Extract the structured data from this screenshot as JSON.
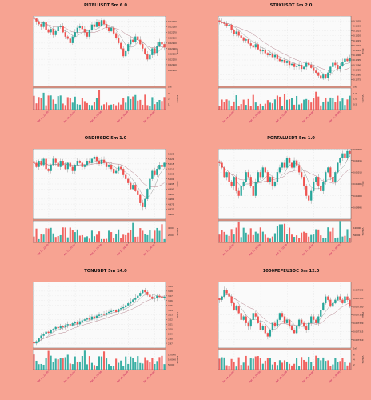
{
  "chart_data": [
    {
      "type": "candlestick",
      "title": "PIXELUSDT 5m 6.0",
      "ylabel": "Price",
      "volume_label": "Volume",
      "ylim": [
        0.0217,
        0.023
      ],
      "price_ticks": [
        "0.02200",
        "0.02210",
        "0.02220",
        "0.02230",
        "0.02240",
        "0.02250",
        "0.02260",
        "0.02270",
        "0.02280",
        "0.02290"
      ],
      "x_ticks": [
        "Apr 14, 22:00",
        "Apr 15, 00:00",
        "Apr 15, 02:00",
        "Apr 15, 04:00",
        "Apr 15, 06:00"
      ],
      "volume_ticks": [
        "1",
        "2",
        "3"
      ],
      "volume_exponent": "1e6",
      "close": [
        0.02295,
        0.0229,
        0.02285,
        0.0228,
        0.02288,
        0.02275,
        0.0227,
        0.02276,
        0.02265,
        0.02272,
        0.0228,
        0.02282,
        0.0227,
        0.02262,
        0.02258,
        0.0225,
        0.02262,
        0.0227,
        0.02278,
        0.02282,
        0.02276,
        0.0227,
        0.02262,
        0.02274,
        0.02284,
        0.0228,
        0.02288,
        0.02282,
        0.02292,
        0.02285,
        0.02278,
        0.02272,
        0.02278,
        0.02268,
        0.0226,
        0.0225,
        0.0224,
        0.02226,
        0.02235,
        0.02248,
        0.02256,
        0.02252,
        0.02262,
        0.02256,
        0.02248,
        0.0224,
        0.0223,
        0.0222,
        0.02228,
        0.0224,
        0.02232,
        0.02245,
        0.02252,
        0.02248,
        0.02242
      ]
    },
    {
      "type": "candlestick",
      "title": "STRKUSDT 5m 2.0",
      "ylabel": "Price",
      "volume_label": "Volume",
      "ylim": [
        0.1268,
        0.134
      ],
      "price_ticks": [
        "0.1275",
        "0.1280",
        "0.1285",
        "0.1290",
        "0.1295",
        "0.1300",
        "0.1305",
        "0.1310",
        "0.1315",
        "0.1320",
        "0.1325",
        "0.1330",
        "0.1335"
      ],
      "x_ticks": [
        "Apr 14, 22:00",
        "Apr 15, 00:00",
        "Apr 15, 02:00",
        "Apr 15, 04:00",
        "Apr 15, 06:00"
      ],
      "volume_ticks": [
        "0.5",
        "1.0",
        "1.5"
      ],
      "volume_exponent": "1e5",
      "close": [
        0.1334,
        0.1333,
        0.1332,
        0.133,
        0.1331,
        0.1326,
        0.1322,
        0.1324,
        0.132,
        0.1318,
        0.1315,
        0.1316,
        0.1312,
        0.131,
        0.1308,
        0.1311,
        0.1306,
        0.1304,
        0.1305,
        0.1302,
        0.13,
        0.1301,
        0.1298,
        0.13,
        0.1296,
        0.1294,
        0.1295,
        0.1292,
        0.1294,
        0.129,
        0.1291,
        0.1288,
        0.1289,
        0.129,
        0.1286,
        0.1288,
        0.1292,
        0.129,
        0.1287,
        0.1284,
        0.1282,
        0.1279,
        0.1276,
        0.128,
        0.1277,
        0.1282,
        0.1288,
        0.1292,
        0.129,
        0.1286,
        0.1289,
        0.1293,
        0.1296,
        0.1294,
        0.1297
      ]
    },
    {
      "type": "candlestick",
      "title": "ORDIUSDC 5m 1.0",
      "ylabel": "Price",
      "volume_label": "Volume",
      "ylim": [
        4.96,
        5.03
      ],
      "price_ticks": [
        "4.965",
        "4.970",
        "4.975",
        "4.980",
        "4.985",
        "4.990",
        "4.995",
        "5.000",
        "5.005",
        "5.010",
        "5.015",
        "5.020",
        "5.025"
      ],
      "x_ticks": [
        "Apr 14, 22:00",
        "Apr 15, 00:00",
        "Apr 15, 02:00",
        "Apr 15, 04:00",
        "Apr 15, 06:00"
      ],
      "volume_ticks": [
        "2000",
        "4000"
      ],
      "close": [
        5.016,
        5.012,
        5.018,
        5.014,
        5.02,
        5.01,
        5.008,
        5.014,
        5.02,
        5.016,
        5.012,
        5.018,
        5.014,
        5.01,
        5.016,
        5.012,
        5.008,
        5.014,
        5.018,
        5.016,
        5.012,
        5.014,
        5.018,
        5.016,
        5.02,
        5.022,
        5.018,
        5.015,
        5.019,
        5.016,
        5.012,
        5.014,
        5.01,
        5.006,
        5.008,
        5.012,
        5.01,
        5.004,
        5.0,
        4.996,
        4.99,
        4.994,
        4.988,
        4.984,
        4.976,
        4.972,
        4.98,
        4.99,
        5.0,
        5.008,
        5.004,
        5.01,
        5.014,
        5.012,
        5.016
      ]
    },
    {
      "type": "candlestick",
      "title": "PORTALUSDT 5m 1.0",
      "ylabel": "Price",
      "volume_label": "Volume",
      "ylim": [
        0.0499,
        0.0502
      ],
      "price_ticks": [
        "0.04995",
        "0.05000",
        "0.05005",
        "0.05010",
        "0.05015",
        "0.05020"
      ],
      "x_ticks": [
        "Apr 14, 22:00",
        "Apr 15, 00:00",
        "Apr 15, 02:00",
        "Apr 15, 04:00",
        "Apr 15, 06:00"
      ],
      "volume_ticks": [
        "50000",
        "100000"
      ],
      "close": [
        0.05014,
        0.05012,
        0.05008,
        0.0501,
        0.05006,
        0.05004,
        0.05008,
        0.05002,
        0.05,
        0.05004,
        0.05006,
        0.0501,
        0.05008,
        0.05004,
        0.05,
        0.05006,
        0.0501,
        0.05008,
        0.05012,
        0.0501,
        0.05006,
        0.05008,
        0.05004,
        0.05006,
        0.0501,
        0.05012,
        0.05014,
        0.05012,
        0.05016,
        0.05014,
        0.05012,
        0.05015,
        0.05013,
        0.0501,
        0.05008,
        0.05004,
        0.05,
        0.04998,
        0.05002,
        0.05006,
        0.05008,
        0.05004,
        0.05002,
        0.05006,
        0.0501,
        0.05012,
        0.05008,
        0.05006,
        0.0501,
        0.05014,
        0.05016,
        0.05018,
        0.05016,
        0.05019,
        0.05018
      ]
    },
    {
      "type": "candlestick",
      "title": "TONUSDT 5m 14.0",
      "ylabel": "Price",
      "volume_label": "Volume",
      "ylim": [
        2.96,
        3.1
      ],
      "price_ticks": [
        "2.97",
        "2.98",
        "2.99",
        "3.00",
        "3.01",
        "3.02",
        "3.03",
        "3.04",
        "3.05",
        "3.06",
        "3.07",
        "3.08",
        "3.09"
      ],
      "x_ticks": [
        "Apr 14, 22:00",
        "Apr 15, 00:00",
        "Apr 15, 02:00",
        "Apr 15, 04:00",
        "Apr 15, 06:00"
      ],
      "volume_ticks": [
        "50000",
        "100000",
        "150000"
      ],
      "close": [
        2.97,
        2.974,
        2.98,
        2.986,
        2.99,
        2.994,
        2.992,
        2.998,
        3.0,
        3.004,
        3.002,
        3.006,
        3.004,
        3.008,
        3.01,
        3.008,
        3.012,
        3.014,
        3.01,
        3.016,
        3.018,
        3.02,
        3.022,
        3.02,
        3.026,
        3.024,
        3.028,
        3.03,
        3.032,
        3.03,
        3.034,
        3.036,
        3.038,
        3.04,
        3.036,
        3.042,
        3.044,
        3.046,
        3.05,
        3.054,
        3.058,
        3.062,
        3.066,
        3.07,
        3.076,
        3.082,
        3.078,
        3.072,
        3.068,
        3.064,
        3.066,
        3.07,
        3.068,
        3.066,
        3.068
      ]
    },
    {
      "type": "candlestick",
      "title": "1000PEPEUSDC 5m 12.0",
      "ylabel": "Price",
      "volume_label": "Volume",
      "ylim": [
        0.007305,
        0.007345
      ],
      "price_ticks": [
        "0.007310",
        "0.007315",
        "0.007320",
        "0.007325",
        "0.007330",
        "0.007335",
        "0.007340"
      ],
      "x_ticks": [
        "Apr 14, 22:00",
        "Apr 15, 00:00",
        "Apr 15, 02:00",
        "Apr 15, 04:00",
        "Apr 15, 06:00"
      ],
      "volume_ticks": [
        "2",
        "4",
        "6"
      ],
      "volume_exponent": "1e7",
      "close": [
        0.007334,
        0.007336,
        0.00734,
        0.007338,
        0.007336,
        0.007332,
        0.007328,
        0.00733,
        0.007326,
        0.007322,
        0.007324,
        0.00732,
        0.007318,
        0.007322,
        0.007326,
        0.007324,
        0.00732,
        0.007316,
        0.007318,
        0.007314,
        0.007312,
        0.007316,
        0.00732,
        0.007318,
        0.007322,
        0.007326,
        0.007324,
        0.00732,
        0.007322,
        0.007318,
        0.007316,
        0.007314,
        0.007318,
        0.007322,
        0.00732,
        0.007318,
        0.007316,
        0.00732,
        0.007324,
        0.007322,
        0.00732,
        0.007324,
        0.007328,
        0.007332,
        0.007336,
        0.007334,
        0.00733,
        0.007332,
        0.007334,
        0.007336,
        0.007334,
        0.007332,
        0.007336,
        0.007334,
        0.00733
      ]
    }
  ],
  "colors": {
    "background": "#f7a392",
    "up": "#26a69a",
    "down": "#ef5350",
    "ma_fast": "#999999",
    "ma_slow": "#b5838d"
  }
}
